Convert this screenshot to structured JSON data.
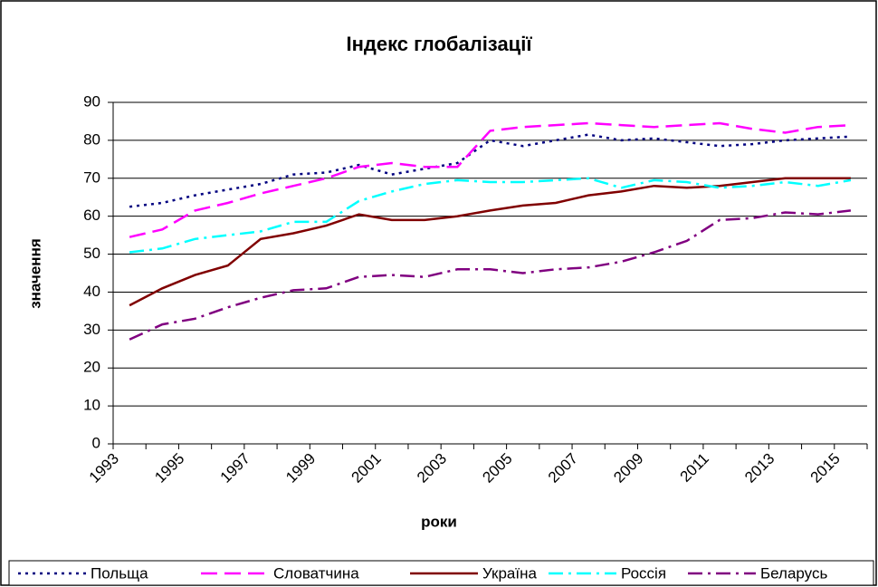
{
  "chart_data": {
    "type": "line",
    "title": "Індекс глобалізації",
    "x_label": "роки",
    "y_label": "значення",
    "categories": [
      "1993",
      null,
      "1995",
      null,
      "1997",
      null,
      "1999",
      null,
      "2001",
      null,
      "2003",
      null,
      "2005",
      null,
      "2007",
      null,
      "2009",
      null,
      "2011",
      null,
      "2013",
      null,
      "2015"
    ],
    "ylim": [
      0,
      90
    ],
    "yticks": [
      0,
      10,
      20,
      30,
      40,
      50,
      60,
      70,
      80,
      90
    ],
    "grid": true,
    "legend": "bottom",
    "series": [
      {
        "name": "Польща",
        "color": "#000080",
        "dash": "dot",
        "values": [
          62.5,
          63.5,
          65.5,
          67,
          68.5,
          71,
          71.5,
          73.5,
          71,
          72.5,
          74,
          80,
          78.5,
          80,
          81.5,
          80,
          80.5,
          79.5,
          78.5,
          79,
          80,
          80.5,
          81
        ]
      },
      {
        "name": "Словатчина",
        "color": "#ff00ff",
        "dash": "dash",
        "values": [
          54.5,
          56.5,
          61.5,
          63.5,
          66,
          68,
          70,
          73,
          74,
          73,
          73,
          82.5,
          83.5,
          84,
          84.5,
          84,
          83.5,
          84,
          84.5,
          83,
          82,
          83.5,
          84
        ]
      },
      {
        "name": "Україна",
        "color": "#800000",
        "dash": "solid",
        "values": [
          36.5,
          41,
          44.5,
          47,
          54,
          55.5,
          57.5,
          60.5,
          59,
          59,
          60,
          61.5,
          62.8,
          63.5,
          65.5,
          66.5,
          68,
          67.5,
          68,
          69,
          70,
          70,
          70
        ]
      },
      {
        "name": "Россія",
        "color": "#00ffff",
        "dash": "dashdot",
        "values": [
          50.5,
          51.5,
          54,
          55,
          56,
          58.5,
          58.5,
          64,
          66.5,
          68.5,
          69.5,
          69,
          69,
          69.5,
          70,
          67.5,
          69.5,
          69,
          67.5,
          68,
          69,
          68,
          69.5
        ]
      },
      {
        "name": "Беларусь",
        "color": "#800080",
        "dash": "dashdot",
        "values": [
          27.5,
          31.5,
          33,
          36,
          38.5,
          40.5,
          41,
          44,
          44.5,
          44,
          46,
          46,
          45,
          46,
          46.5,
          48,
          50.5,
          53.5,
          59,
          59.5,
          61,
          60.5,
          61.5
        ]
      }
    ]
  }
}
